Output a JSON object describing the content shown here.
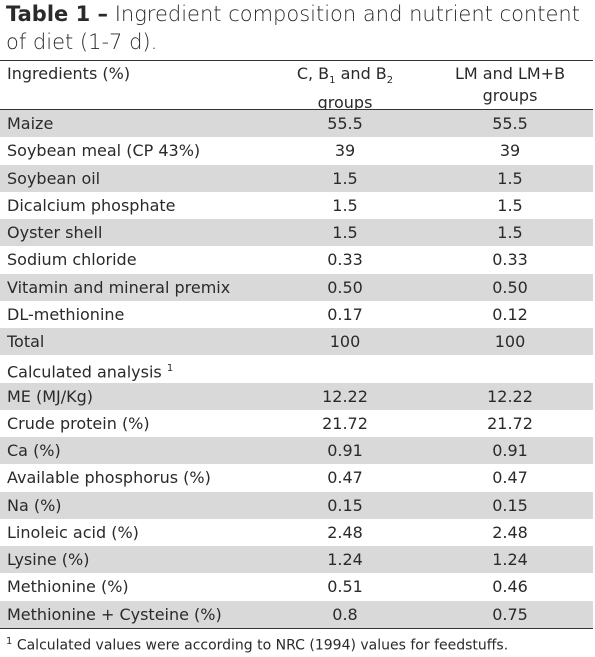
{
  "title": {
    "label": "Table 1 –",
    "text": "Ingredient composition and nutrient content of diet (1-7 d)."
  },
  "table": {
    "header": {
      "col1": "Ingredients (%)",
      "col2": {
        "t1": "C, B",
        "s1": "1",
        "t2": " and B",
        "s2": "2",
        "line2": "groups"
      },
      "col3": {
        "line1": "LM and LM+B",
        "line2": "groups"
      }
    },
    "rows": [
      [
        "Maize",
        "55.5",
        "55.5"
      ],
      [
        "Soybean meal (CP 43%)",
        "39",
        "39"
      ],
      [
        "Soybean oil",
        "1.5",
        "1.5"
      ],
      [
        "Dicalcium phosphate",
        "1.5",
        "1.5"
      ],
      [
        "Oyster shell",
        "1.5",
        "1.5"
      ],
      [
        "Sodium chloride",
        "0.33",
        "0.33"
      ],
      [
        "Vitamin and mineral premix",
        "0.50",
        "0.50"
      ],
      [
        "DL-methionine",
        "0.17",
        "0.12"
      ],
      [
        "Total",
        "100",
        "100"
      ],
      {
        "label": "Calculated analysis",
        "note": "1"
      },
      [
        "ME (MJ/Kg)",
        "12.22",
        "12.22"
      ],
      [
        "Crude protein (%)",
        "21.72",
        "21.72"
      ],
      [
        "Ca (%)",
        "0.91",
        "0.91"
      ],
      [
        "Available phosphorus (%)",
        "0.47",
        "0.47"
      ],
      [
        "Na (%)",
        "0.15",
        "0.15"
      ],
      [
        "Linoleic acid (%)",
        "2.48",
        "2.48"
      ],
      [
        "Lysine (%)",
        "1.24",
        "1.24"
      ],
      [
        "Methionine (%)",
        "0.51",
        "0.46"
      ],
      [
        "Methionine + Cysteine (%)",
        "0.8",
        "0.75"
      ]
    ]
  },
  "footnote": {
    "mark": "1",
    "text": "Calculated values were according to NRC (1994) values for feedstuffs."
  }
}
